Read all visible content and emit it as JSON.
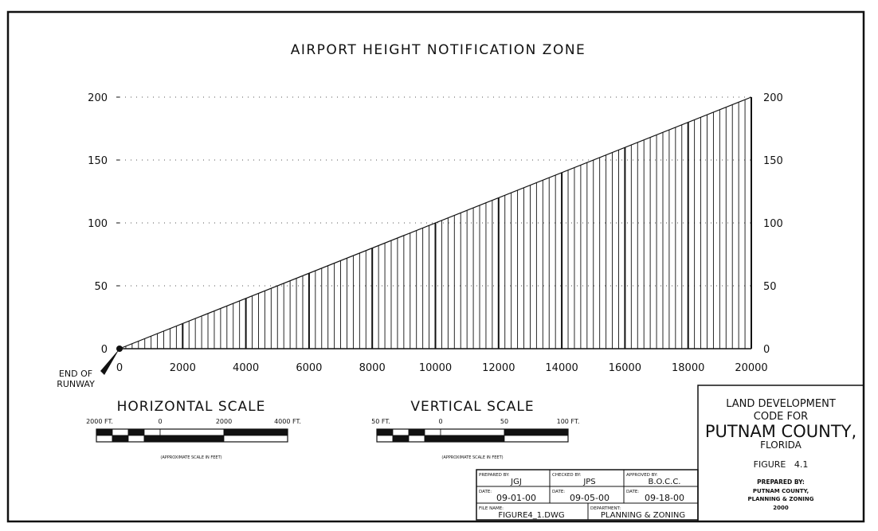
{
  "title": "AIRPORT HEIGHT NOTIFICATION ZONE",
  "runway_label": [
    "END OF",
    "RUNWAY"
  ],
  "chart_data": {
    "type": "line",
    "title": "AIRPORT HEIGHT NOTIFICATION ZONE",
    "x": [
      0,
      20000
    ],
    "y": [
      0,
      200
    ],
    "xlim": [
      0,
      20000
    ],
    "ylim": [
      0,
      200
    ],
    "x_ticks": [
      "0",
      "2000",
      "4000",
      "6000",
      "8000",
      "10000",
      "12000",
      "14000",
      "16000",
      "18000",
      "20000"
    ],
    "y_ticks": [
      "0",
      "50",
      "100",
      "150",
      "200"
    ],
    "vertical_hatch_interval": 200,
    "bold_hatch_interval": 2000,
    "grid": "dotted horizontal"
  },
  "scales": {
    "horizontal": {
      "title": "HORIZONTAL SCALE",
      "labels": [
        "2000 FT.",
        "0",
        "2000",
        "4000 FT."
      ],
      "note": "(APPROXIMATE SCALE IN FEET)"
    },
    "vertical": {
      "title": "VERTICAL SCALE",
      "labels": [
        "50 FT.",
        "0",
        "50",
        "100 FT."
      ],
      "note": "(APPROXIMATE SCALE IN FEET)"
    }
  },
  "title_block": {
    "prepared_by_label": "PREPARED BY:",
    "prepared_by": "JGJ",
    "checked_by_label": "CHECKED BY:",
    "checked_by": "JPS",
    "approved_by_label": "APPROVED BY:",
    "approved_by": "B.O.C.C.",
    "date_label": "DATE:",
    "date1": "09-01-00",
    "date2": "09-05-00",
    "date3": "09-18-00",
    "file_name_label": "FILE NAME:",
    "file_name": "FIGURE4_1.DWG",
    "department_label": "DEPARTMENT:",
    "department": "PLANNING & ZONING"
  },
  "info_box": {
    "line1": "LAND DEVELOPMENT",
    "line2": "CODE FOR",
    "line3": "PUTNAM COUNTY,",
    "line4": "FLORIDA",
    "figure": "FIGURE   4.1",
    "prepared_by": "PREPARED BY:",
    "org1": "PUTNAM COUNTY,",
    "org2": "PLANNING & ZONING",
    "year": "2000"
  }
}
